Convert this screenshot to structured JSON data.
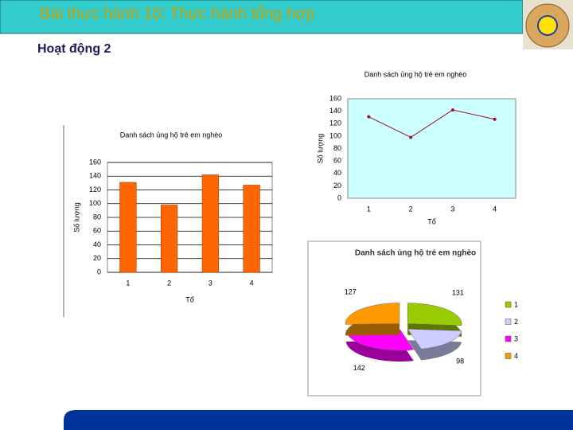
{
  "slide": {
    "title": "Bài thực hành 10: Thực hành tổng hợp",
    "subtitle": "Hoạt động 2"
  },
  "chart_data": [
    {
      "type": "bar",
      "title": "Danh sách ủng hộ trẻ em nghèo",
      "x_label": "Tổ",
      "y_label": "Số lượng",
      "categories": [
        "1",
        "2",
        "3",
        "4"
      ],
      "values": [
        131,
        98,
        142,
        127
      ],
      "color": "#ff6600",
      "ylim": [
        0,
        160
      ],
      "yticks": [
        0,
        20,
        40,
        60,
        80,
        100,
        120,
        140,
        160
      ],
      "grid": true
    },
    {
      "type": "line",
      "title": "Danh sách ủng hộ trẻ em nghèo",
      "x_label": "Tổ",
      "y_label": "Số lượng",
      "categories": [
        "1",
        "2",
        "3",
        "4"
      ],
      "values": [
        131,
        98,
        142,
        127
      ],
      "color": "#a0102a",
      "ylim": [
        0,
        160
      ],
      "yticks": [
        0,
        20,
        40,
        60,
        80,
        100,
        120,
        140,
        160
      ],
      "grid": false
    },
    {
      "type": "pie",
      "title": "Danh sách ủng hộ trẻ em nghèo",
      "legend": "right",
      "series": [
        {
          "name": "1",
          "color": "#99cc00",
          "values": [
            131
          ]
        },
        {
          "name": "2",
          "color": "#ccccff",
          "values": [
            98
          ]
        },
        {
          "name": "3",
          "color": "#ff00ff",
          "values": [
            142
          ]
        },
        {
          "name": "4",
          "color": "#ff9900",
          "values": [
            127
          ]
        }
      ]
    }
  ]
}
